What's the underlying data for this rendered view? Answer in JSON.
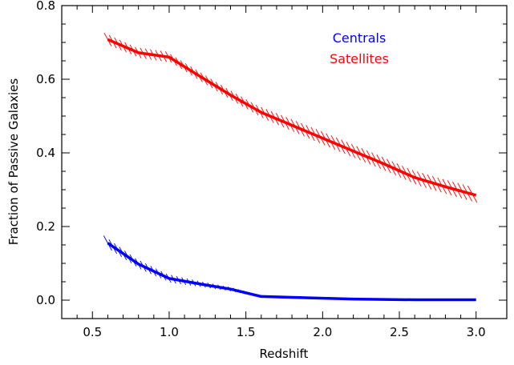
{
  "chart_data": {
    "type": "line",
    "title": "",
    "xlabel": "Redshift",
    "ylabel": "Fraction of Passive Galaxies",
    "xlim": [
      0.3,
      3.2
    ],
    "ylim": [
      -0.05,
      0.8
    ],
    "x_ticks": [
      0.5,
      1.0,
      1.5,
      2.0,
      2.5,
      3.0
    ],
    "x_tick_labels": [
      "0.5",
      "1.0",
      "1.5",
      "2.0",
      "2.5",
      "3.0"
    ],
    "y_ticks": [
      0.0,
      0.2,
      0.4,
      0.6,
      0.8
    ],
    "y_tick_labels": [
      "0.0",
      "0.2",
      "0.4",
      "0.6",
      "0.8"
    ],
    "grid": false,
    "legend_position": "top-right",
    "series": [
      {
        "name": "Centrals",
        "color": "#0000ff",
        "x": [
          0.6,
          0.8,
          1.0,
          1.2,
          1.4,
          1.6,
          2.2,
          2.6,
          3.0
        ],
        "y": [
          0.155,
          0.098,
          0.059,
          0.044,
          0.03,
          0.01,
          0.003,
          0.001,
          0.001
        ],
        "error": [
          0.02,
          0.015,
          0.012,
          0.008,
          0.006,
          0.003,
          0.002,
          0.001,
          0.001
        ]
      },
      {
        "name": "Satellites",
        "color": "#ff0000",
        "x": [
          0.6,
          0.8,
          1.0,
          1.2,
          1.4,
          1.6,
          1.8,
          2.0,
          2.2,
          2.4,
          2.6,
          2.8,
          3.0
        ],
        "y": [
          0.708,
          0.672,
          0.66,
          0.608,
          0.557,
          0.51,
          0.475,
          0.44,
          0.405,
          0.37,
          0.333,
          0.308,
          0.285
        ],
        "error": [
          0.018,
          0.015,
          0.015,
          0.017,
          0.017,
          0.018,
          0.02,
          0.022,
          0.022,
          0.022,
          0.022,
          0.022,
          0.023
        ]
      }
    ]
  }
}
